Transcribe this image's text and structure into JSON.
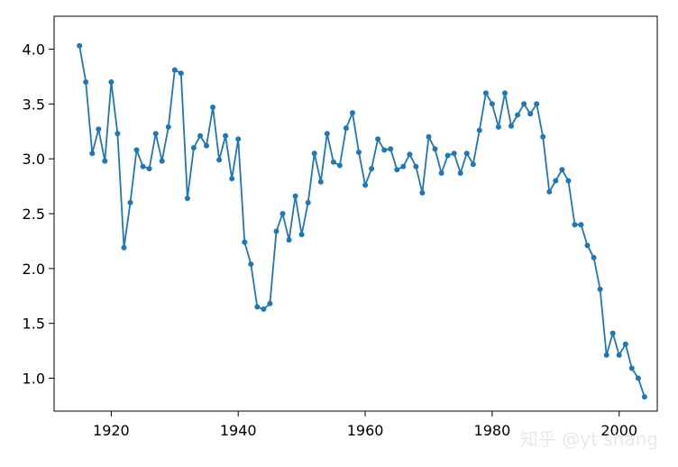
{
  "chart_data": {
    "type": "line",
    "title": "",
    "xlabel": "",
    "ylabel": "",
    "xlim": [
      1911,
      2006
    ],
    "ylim": [
      0.7,
      4.3
    ],
    "xticks": [
      1920,
      1940,
      1960,
      1980,
      2000
    ],
    "yticks": [
      1.0,
      1.5,
      2.0,
      2.5,
      3.0,
      3.5,
      4.0
    ],
    "xtick_labels": [
      "1920",
      "1940",
      "1960",
      "1980",
      "2000"
    ],
    "ytick_labels": [
      "1.0",
      "1.5",
      "2.0",
      "2.5",
      "3.0",
      "3.5",
      "4.0"
    ],
    "grid": false,
    "color": "#1f77b4",
    "marker": "dot",
    "series": [
      {
        "x": [
          1915,
          1916,
          1917,
          1918,
          1919,
          1920,
          1921,
          1922,
          1923,
          1924,
          1925,
          1926,
          1927,
          1928,
          1929,
          1930,
          1931,
          1932,
          1933,
          1934,
          1935,
          1936,
          1937,
          1938,
          1939,
          1940,
          1941,
          1942,
          1943,
          1944,
          1945,
          1946,
          1947,
          1948,
          1949,
          1950,
          1951,
          1952,
          1953,
          1954,
          1955,
          1956,
          1957,
          1958,
          1959,
          1960,
          1961,
          1962,
          1963,
          1964,
          1965,
          1966,
          1967,
          1968,
          1969,
          1970,
          1971,
          1972,
          1973,
          1974,
          1975,
          1976,
          1977,
          1978,
          1979,
          1980,
          1981,
          1982,
          1983,
          1984,
          1985,
          1986,
          1987,
          1988,
          1989,
          1990,
          1991,
          1992,
          1993,
          1994,
          1995,
          1996,
          1997,
          1998,
          1999,
          2000,
          2001,
          2002,
          2003,
          2004
        ],
        "y": [
          4.03,
          3.7,
          3.05,
          3.27,
          2.98,
          3.7,
          3.23,
          2.19,
          2.6,
          3.08,
          2.93,
          2.91,
          3.23,
          2.98,
          3.29,
          3.81,
          3.78,
          2.64,
          3.1,
          3.21,
          3.12,
          3.47,
          2.99,
          3.21,
          2.82,
          3.18,
          2.24,
          2.04,
          1.65,
          1.63,
          1.68,
          2.34,
          2.5,
          2.26,
          2.66,
          2.31,
          2.6,
          3.05,
          2.79,
          3.23,
          2.97,
          2.94,
          3.28,
          3.42,
          3.06,
          2.76,
          2.91,
          3.18,
          3.08,
          3.09,
          2.9,
          2.93,
          3.04,
          2.93,
          2.69,
          3.2,
          3.09,
          2.87,
          3.03,
          3.05,
          2.87,
          3.05,
          2.95,
          3.26,
          3.6,
          3.5,
          3.29,
          3.6,
          3.3,
          3.4,
          3.5,
          3.41,
          3.5,
          3.2,
          2.7,
          2.8,
          2.9,
          2.8,
          2.4,
          2.4,
          2.21,
          2.1,
          1.81,
          1.21,
          1.41,
          1.21,
          1.31,
          1.09,
          1.0,
          0.83
        ]
      }
    ]
  },
  "watermark": "知乎 @yt shang"
}
